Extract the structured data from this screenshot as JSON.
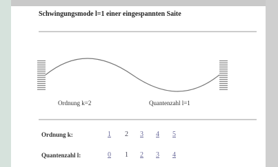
{
  "header": {
    "title": "Schwingungsmode l=1 einer eingespannten Saite"
  },
  "figure": {
    "left_label": "Ordnung k=2",
    "right_label": "Quantenzahl l=1"
  },
  "table": {
    "rows": [
      {
        "label": "Ordnung k:",
        "items": [
          "1",
          "2",
          "3",
          "4",
          "5"
        ]
      },
      {
        "label": "Quantenzahl l:",
        "items": [
          "0",
          "1",
          "2",
          "3",
          "4"
        ]
      }
    ]
  }
}
